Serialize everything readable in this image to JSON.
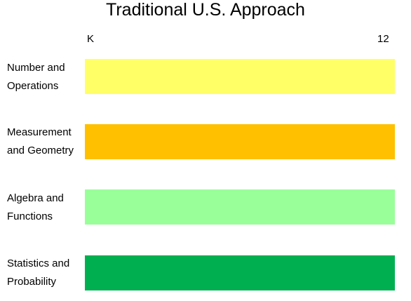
{
  "title": "Traditional U.S. Approach",
  "axis": {
    "start_label": "K",
    "end_label": "12"
  },
  "strands": [
    {
      "label": "Number and\nOperations",
      "color": "#ffff66"
    },
    {
      "label": "Measurement\nand Geometry",
      "color": "#ffc000"
    },
    {
      "label": "Algebra and\nFunctions",
      "color": "#99ff99"
    },
    {
      "label": "Statistics and\nProbability",
      "color": "#00b050"
    }
  ]
}
